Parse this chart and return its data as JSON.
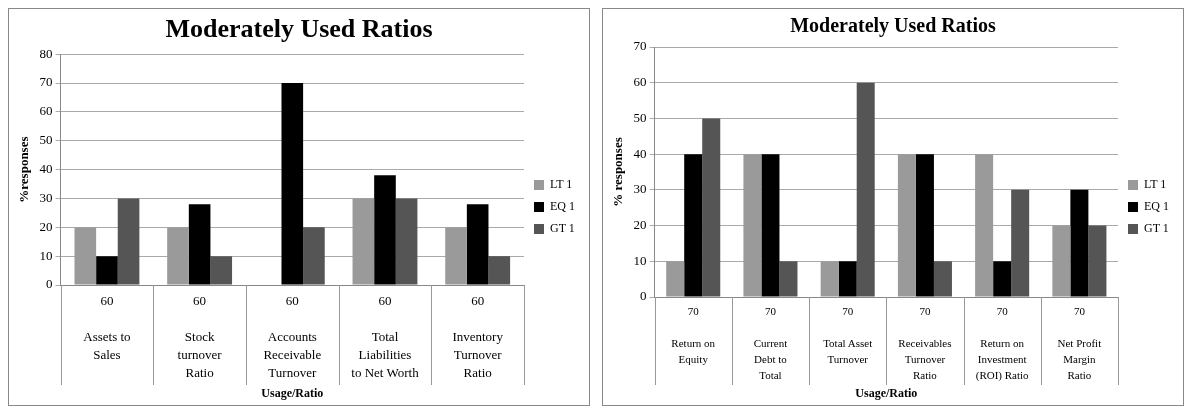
{
  "chart_data": [
    {
      "type": "bar",
      "title": "Moderately Used Ratios",
      "xlabel": "Usage/Ratio",
      "ylabel": "%responses",
      "categories": [
        "60\nAssets to Sales",
        "60\nStock turnover Ratio",
        "60\nAccounts Receivable Turnover",
        "60\nTotal Liabilities to Net Worth",
        "60\nInventory Turnover Ratio"
      ],
      "series": [
        {
          "name": "LT 1",
          "color": "#9a9a9a",
          "values": [
            20,
            20,
            0,
            30,
            20
          ]
        },
        {
          "name": "EQ 1",
          "color": "#000000",
          "values": [
            10,
            28,
            70,
            38,
            28
          ]
        },
        {
          "name": "GT 1",
          "color": "#555555",
          "values": [
            30,
            10,
            20,
            30,
            10
          ]
        }
      ],
      "ylim": [
        0,
        80
      ],
      "yticks": [
        0,
        10,
        20,
        30,
        40,
        50,
        60,
        70,
        80
      ],
      "grid": "y",
      "legend": "right"
    },
    {
      "type": "bar",
      "title": "Moderately Used Ratios",
      "xlabel": "Usage/Ratio",
      "ylabel": "% responses",
      "categories": [
        "70\nReturn on Equity",
        "70\nCurrent Debt to Total",
        "70\nTotal Asset Turnover",
        "70\nReceivables Turnover Ratio",
        "70\nReturn on Investment (ROI) Ratio",
        "70\nNet Profit Margin Ratio"
      ],
      "series": [
        {
          "name": "LT 1",
          "color": "#9a9a9a",
          "values": [
            10,
            40,
            10,
            40,
            40,
            20
          ]
        },
        {
          "name": "EQ 1",
          "color": "#000000",
          "values": [
            40,
            40,
            10,
            40,
            10,
            30
          ]
        },
        {
          "name": "GT 1",
          "color": "#555555",
          "values": [
            50,
            10,
            60,
            10,
            30,
            20
          ]
        }
      ],
      "ylim": [
        0,
        70
      ],
      "yticks": [
        0,
        10,
        20,
        30,
        40,
        50,
        60,
        70
      ],
      "grid": "y",
      "legend": "right"
    }
  ]
}
